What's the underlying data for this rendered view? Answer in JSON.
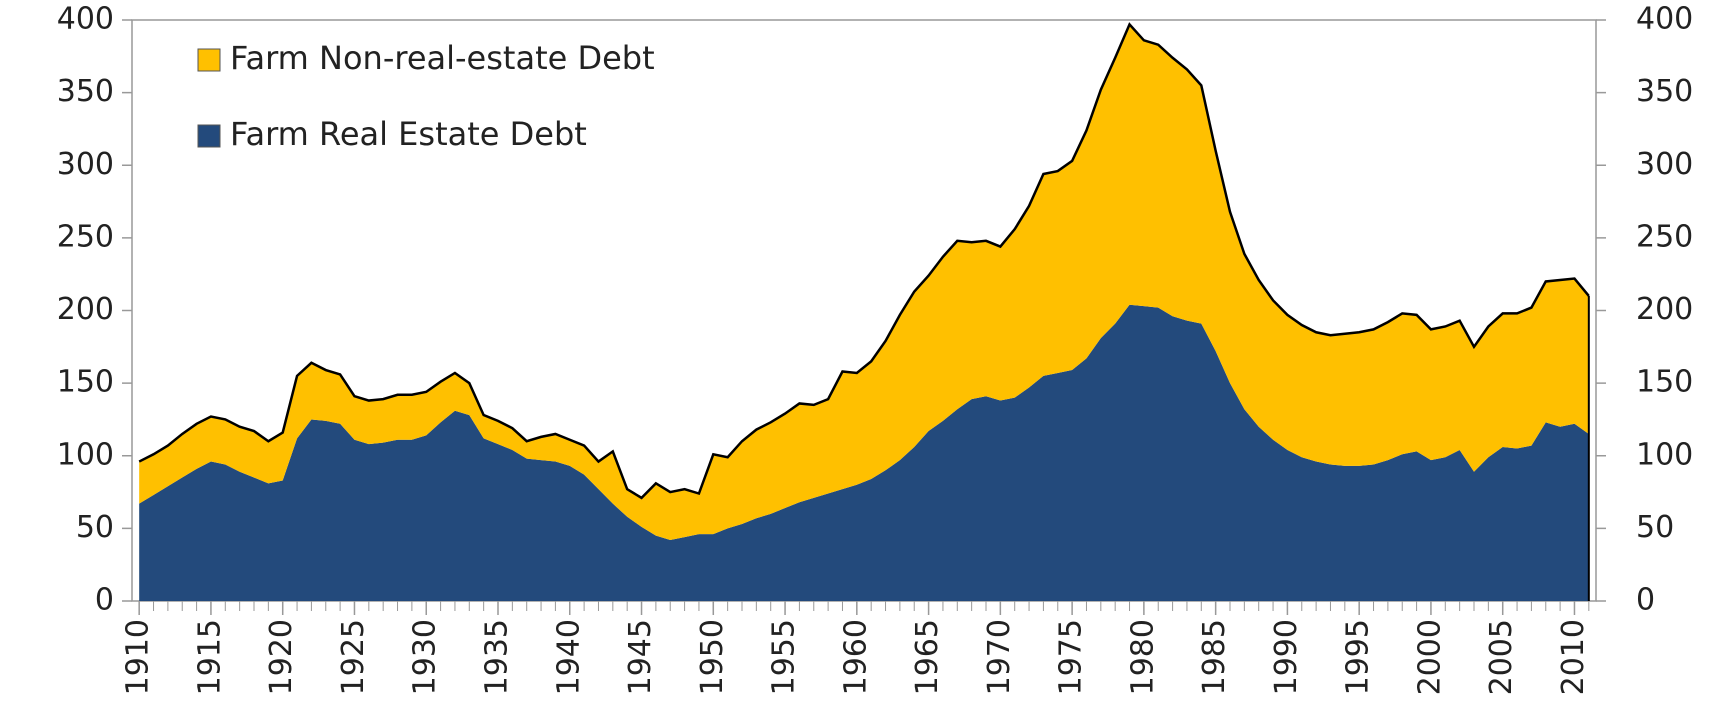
{
  "chart_data": {
    "type": "stacked-area",
    "x": [
      1910,
      1911,
      1912,
      1913,
      1914,
      1915,
      1916,
      1917,
      1918,
      1919,
      1920,
      1921,
      1922,
      1923,
      1924,
      1925,
      1926,
      1927,
      1928,
      1929,
      1930,
      1931,
      1932,
      1933,
      1934,
      1935,
      1936,
      1937,
      1938,
      1939,
      1940,
      1941,
      1942,
      1943,
      1944,
      1945,
      1946,
      1947,
      1948,
      1949,
      1950,
      1951,
      1952,
      1953,
      1954,
      1955,
      1956,
      1957,
      1958,
      1959,
      1960,
      1961,
      1962,
      1963,
      1964,
      1965,
      1966,
      1967,
      1968,
      1969,
      1970,
      1971,
      1972,
      1973,
      1974,
      1975,
      1976,
      1977,
      1978,
      1979,
      1980,
      1981,
      1982,
      1983,
      1984,
      1985,
      1986,
      1987,
      1988,
      1989,
      1990,
      1991,
      1992,
      1993,
      1994,
      1995,
      1996,
      1997,
      1998,
      1999,
      2000,
      2001,
      2002,
      2003,
      2004,
      2005,
      2006,
      2007,
      2008,
      2009,
      2010,
      2011
    ],
    "series": [
      {
        "name": "Farm Real Estate Debt",
        "color": "#234a7c",
        "values": [
          67,
          73,
          79,
          85,
          91,
          96,
          94,
          89,
          85,
          81,
          83,
          112,
          125,
          124,
          122,
          111,
          108,
          109,
          111,
          111,
          114,
          123,
          131,
          128,
          112,
          108,
          104,
          98,
          97,
          96,
          93,
          87,
          77,
          67,
          58,
          51,
          45,
          42,
          44,
          46,
          46,
          50,
          53,
          57,
          60,
          64,
          68,
          71,
          74,
          77,
          80,
          84,
          90,
          97,
          106,
          117,
          124,
          132,
          139,
          141,
          138,
          140,
          147,
          155,
          157,
          159,
          167,
          181,
          191,
          204,
          203,
          202,
          196,
          193,
          191,
          172,
          150,
          132,
          120,
          111,
          104,
          99,
          96,
          94,
          93,
          93,
          94,
          97,
          101,
          103,
          97,
          99,
          104,
          89,
          99,
          106,
          105,
          107,
          123,
          120,
          122,
          115
        ]
      },
      {
        "name": "Farm Non-real-estate  Debt",
        "color": "#ffc000",
        "values": [
          29,
          28,
          28,
          30,
          31,
          31,
          31,
          31,
          32,
          29,
          33,
          43,
          39,
          35,
          34,
          30,
          30,
          30,
          31,
          31,
          30,
          28,
          26,
          22,
          16,
          16,
          15,
          12,
          16,
          19,
          18,
          20,
          19,
          36,
          19,
          20,
          36,
          33,
          33,
          28,
          55,
          49,
          57,
          61,
          63,
          65,
          68,
          64,
          65,
          81,
          77,
          81,
          89,
          100,
          107,
          107,
          113,
          116,
          108,
          107,
          106,
          116,
          125,
          139,
          139,
          144,
          157,
          171,
          183,
          193,
          183,
          181,
          178,
          173,
          164,
          138,
          118,
          107,
          101,
          96,
          93,
          91,
          89,
          89,
          91,
          92,
          93,
          95,
          97,
          94,
          90,
          90,
          89,
          86,
          90,
          92,
          93,
          95,
          97,
          101,
          100,
          95
        ]
      }
    ],
    "xlim": [
      1909.5,
      2011.5
    ],
    "xticks": [
      1910,
      1915,
      1920,
      1925,
      1930,
      1935,
      1940,
      1945,
      1950,
      1955,
      1960,
      1965,
      1970,
      1975,
      1980,
      1985,
      1990,
      1995,
      2000,
      2005,
      2010
    ],
    "ylim": [
      0,
      400
    ],
    "yticks": [
      0,
      50,
      100,
      150,
      200,
      250,
      300,
      350,
      400
    ],
    "legend": "upper-left"
  }
}
